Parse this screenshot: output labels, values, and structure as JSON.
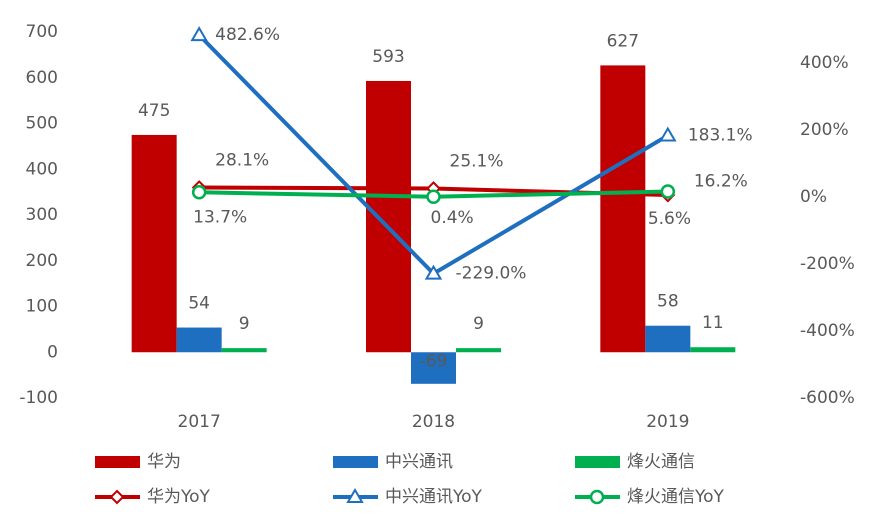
{
  "chart_data": {
    "type": "bar-line",
    "categories": [
      "2017",
      "2018",
      "2019"
    ],
    "ylim": [
      -100,
      700
    ],
    "yticks": [
      -100,
      0,
      100,
      200,
      300,
      400,
      500,
      600,
      700
    ],
    "y2lim": [
      -600,
      492
    ],
    "y2ticks": [
      {
        "value": -600,
        "label": "-600%"
      },
      {
        "value": -400,
        "label": "-400%"
      },
      {
        "value": -200,
        "label": "-200%"
      },
      {
        "value": 0,
        "label": "0%"
      },
      {
        "value": 200,
        "label": "200%"
      },
      {
        "value": 400,
        "label": "400%"
      }
    ],
    "grid": false,
    "series": [
      {
        "name": "华为",
        "type": "bar",
        "color": "#c00000",
        "values": [
          475,
          593,
          627
        ]
      },
      {
        "name": "中兴通讯",
        "type": "bar",
        "color": "#1f6fc0",
        "values": [
          54,
          -69,
          58
        ]
      },
      {
        "name": "烽火通信",
        "type": "bar",
        "color": "#00b050",
        "values": [
          9,
          9,
          11
        ]
      },
      {
        "name": "华为YoY",
        "type": "line",
        "axis": "y2",
        "marker": "diamond",
        "color": "#c00000",
        "values": [
          28.1,
          25.1,
          5.6
        ],
        "value_labels": [
          "28.1%",
          "25.1%",
          "5.6%"
        ]
      },
      {
        "name": "中兴通讯YoY",
        "type": "line",
        "axis": "y2",
        "marker": "triangle",
        "color": "#1f6fc0",
        "values": [
          482.6,
          -229.0,
          183.1
        ],
        "value_labels": [
          "482.6%",
          "-229.0%",
          "183.1%"
        ]
      },
      {
        "name": "烽火通信YoY",
        "type": "line",
        "axis": "y2",
        "marker": "circle",
        "color": "#00b050",
        "values": [
          13.7,
          0.4,
          16.2
        ],
        "value_labels": [
          "13.7%",
          "0.4%",
          "16.2%"
        ]
      }
    ]
  }
}
